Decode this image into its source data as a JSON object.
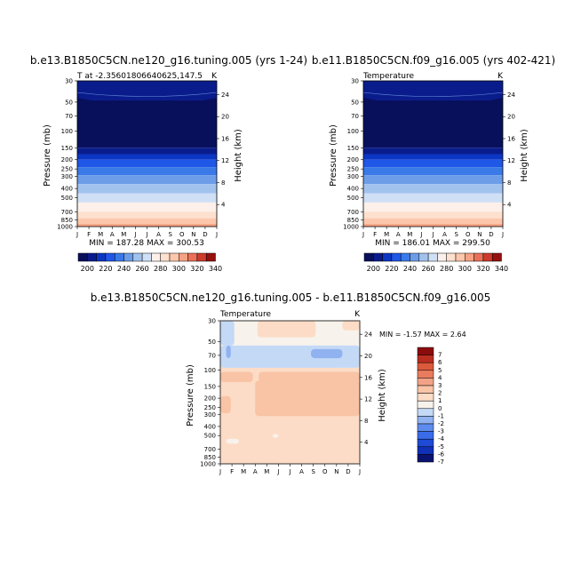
{
  "months": [
    "J",
    "F",
    "M",
    "A",
    "M",
    "J",
    "J",
    "A",
    "S",
    "O",
    "N",
    "D",
    "J"
  ],
  "pressure_ticks": [
    "30",
    "50",
    "70",
    "100",
    "150",
    "200",
    "250",
    "300",
    "400",
    "500",
    "700",
    "850",
    "1000"
  ],
  "height_ticks_top": [
    "24",
    "20",
    "16",
    "12",
    "8",
    "4"
  ],
  "height_ticks_bottom": [
    "24",
    "20",
    "16",
    "12",
    "8",
    "4"
  ],
  "colors": {
    "abs": [
      "#08105c",
      "#0a1c8c",
      "#0c36c4",
      "#1f57e6",
      "#3a7ae8",
      "#6d9de8",
      "#a2c2ee",
      "#cfe0f6",
      "#fdf0ea",
      "#fde0ce",
      "#fcc7ac",
      "#f6a284",
      "#ea7058",
      "#cc3b2c",
      "#95110f"
    ],
    "diff": [
      "#0a1470",
      "#1030b8",
      "#1f4ad6",
      "#3a6cea",
      "#5e8cee",
      "#90b2f0",
      "#c3d9f6",
      "#f8f2ec",
      "#fcdcc6",
      "#f9c3a6",
      "#f2a286",
      "#ea7c5e",
      "#dc5a3c",
      "#bb2d1f",
      "#8c0c0c"
    ]
  },
  "chart_data": [
    {
      "type": "heatmap",
      "title": "b.e13.B1850C5CN.ne120_g16.tuning.005 (yrs 1-24)",
      "subtitle_left": "T at -2.35601806640625,147.5",
      "subtitle_right": "K",
      "xlabel": "",
      "ylabel": "Pressure (mb)",
      "y2label": "Height (km)",
      "x": [
        "J",
        "F",
        "M",
        "A",
        "M",
        "J",
        "J",
        "A",
        "S",
        "O",
        "N",
        "D",
        "J"
      ],
      "ylim": [
        1000,
        30
      ],
      "stats_text": "MIN = 187.28 MAX = 300.53",
      "min": 187.28,
      "max": 300.53,
      "bands_from_top": [
        {
          "top_mb": 30,
          "value": 200
        },
        {
          "top_mb": 48,
          "value": 190
        },
        {
          "top_mb": 150,
          "value": 200
        },
        {
          "top_mb": 175,
          "value": 210
        },
        {
          "top_mb": 200,
          "value": 220
        },
        {
          "top_mb": 240,
          "value": 230
        },
        {
          "top_mb": 290,
          "value": 240
        },
        {
          "top_mb": 360,
          "value": 250
        },
        {
          "top_mb": 450,
          "value": 260
        },
        {
          "top_mb": 560,
          "value": 270
        },
        {
          "top_mb": 700,
          "value": 280
        },
        {
          "top_mb": 820,
          "value": 290
        },
        {
          "top_mb": 940,
          "value": 300
        }
      ],
      "colorbar_labels": [
        "200",
        "220",
        "240",
        "260",
        "280",
        "300",
        "320",
        "340"
      ]
    },
    {
      "type": "heatmap",
      "title": "b.e11.B1850C5CN.f09_g16.005 (yrs 402-421)",
      "subtitle_left": "Temperature",
      "subtitle_right": "K",
      "xlabel": "",
      "ylabel": "Pressure (mb)",
      "y2label": "Height (km)",
      "x": [
        "J",
        "F",
        "M",
        "A",
        "M",
        "J",
        "J",
        "A",
        "S",
        "O",
        "N",
        "D",
        "J"
      ],
      "ylim": [
        1000,
        30
      ],
      "stats_text": "MIN = 186.01 MAX = 299.50",
      "min": 186.01,
      "max": 299.5,
      "bands_from_top": [
        {
          "top_mb": 30,
          "value": 200
        },
        {
          "top_mb": 48,
          "value": 190
        },
        {
          "top_mb": 150,
          "value": 200
        },
        {
          "top_mb": 175,
          "value": 210
        },
        {
          "top_mb": 200,
          "value": 220
        },
        {
          "top_mb": 240,
          "value": 230
        },
        {
          "top_mb": 290,
          "value": 240
        },
        {
          "top_mb": 360,
          "value": 250
        },
        {
          "top_mb": 450,
          "value": 260
        },
        {
          "top_mb": 560,
          "value": 270
        },
        {
          "top_mb": 700,
          "value": 280
        },
        {
          "top_mb": 820,
          "value": 290
        },
        {
          "top_mb": 940,
          "value": 300
        }
      ],
      "colorbar_labels": [
        "200",
        "220",
        "240",
        "260",
        "280",
        "300",
        "320",
        "340"
      ]
    },
    {
      "type": "heatmap",
      "title": "b.e13.B1850C5CN.ne120_g16.tuning.005 - b.e11.B1850C5CN.f09_g16.005",
      "subtitle_left": "Temperature",
      "subtitle_right": "K",
      "xlabel": "",
      "ylabel": "Pressure (mb)",
      "y2label": "Height (km)",
      "x": [
        "J",
        "F",
        "M",
        "A",
        "M",
        "J",
        "J",
        "A",
        "S",
        "O",
        "N",
        "D",
        "J"
      ],
      "ylim": [
        1000,
        30
      ],
      "stats_text": "MIN =   -1.57 MAX =    2.64",
      "min": -1.57,
      "max": 2.64,
      "regions": [
        {
          "month_from": 0,
          "month_to": 12,
          "mb_from": 85,
          "mb_to": 1000,
          "value": 1
        },
        {
          "month_from": 0,
          "month_to": 12,
          "mb_from": 30,
          "mb_to": 95,
          "value": 0
        },
        {
          "month_from": 0,
          "month_to": 12,
          "mb_from": 55,
          "mb_to": 95,
          "value": -1
        },
        {
          "month_from": 0,
          "month_to": 1.2,
          "mb_from": 30,
          "mb_to": 55,
          "value": -1
        },
        {
          "month_from": 3.2,
          "month_to": 8.2,
          "mb_from": 30,
          "mb_to": 45,
          "value": 1
        },
        {
          "month_from": 10.5,
          "month_to": 12,
          "mb_from": 30,
          "mb_to": 38,
          "value": 1
        },
        {
          "month_from": 7.8,
          "month_to": 10.5,
          "mb_from": 60,
          "mb_to": 75,
          "value": -2
        },
        {
          "month_from": 0.5,
          "month_to": 0.9,
          "mb_from": 55,
          "mb_to": 75,
          "value": -2
        },
        {
          "month_from": 0,
          "month_to": 2.8,
          "mb_from": 105,
          "mb_to": 135,
          "value": 2
        },
        {
          "month_from": 3.3,
          "month_to": 12,
          "mb_from": 105,
          "mb_to": 135,
          "value": 2
        },
        {
          "month_from": 3.0,
          "month_to": 12,
          "mb_from": 130,
          "mb_to": 310,
          "value": 2
        },
        {
          "month_from": 0,
          "month_to": 0.9,
          "mb_from": 190,
          "mb_to": 290,
          "value": 2
        },
        {
          "month_from": 0.5,
          "month_to": 1.6,
          "mb_from": 540,
          "mb_to": 610,
          "value": 0
        },
        {
          "month_from": 4.5,
          "month_to": 5.0,
          "mb_from": 480,
          "mb_to": 530,
          "value": 0
        }
      ],
      "colorbar_labels": [
        "7",
        "6",
        "5",
        "4",
        "3",
        "2",
        "1",
        "0",
        "-1",
        "-2",
        "-3",
        "-4",
        "-5",
        "-6",
        "-7"
      ]
    }
  ]
}
